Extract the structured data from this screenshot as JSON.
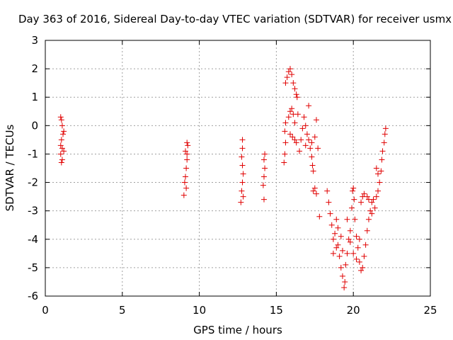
{
  "chart_data": {
    "type": "scatter",
    "title": "Day 363 of 2016, Sidereal Day-to-day VTEC variation (SDTVAR) for receiver usmx",
    "xlabel": "GPS time / hours",
    "ylabel": "SDTVAR / TECUs",
    "xlim": [
      0,
      25
    ],
    "ylim": [
      -6,
      3
    ],
    "x_ticks": [
      "0",
      "5",
      "10",
      "15",
      "20",
      "25"
    ],
    "y_ticks": [
      "-6",
      "-5",
      "-4",
      "-3",
      "-2",
      "-1",
      "0",
      "1",
      "2",
      "3"
    ],
    "x_tick_values": [
      0,
      5,
      10,
      15,
      20,
      25
    ],
    "y_tick_values": [
      -6,
      -5,
      -4,
      -3,
      -2,
      -1,
      0,
      1,
      2,
      3
    ],
    "grid": true,
    "marker": "+",
    "color": "#e00000",
    "series": [
      {
        "name": "usmx",
        "points": [
          [
            1.0,
            0.3
          ],
          [
            1.05,
            0.2
          ],
          [
            1.1,
            0.0
          ],
          [
            1.2,
            -0.2
          ],
          [
            1.15,
            -0.3
          ],
          [
            1.05,
            -0.5
          ],
          [
            1.0,
            -0.7
          ],
          [
            1.1,
            -0.8
          ],
          [
            1.0,
            -1.0
          ],
          [
            1.2,
            -0.9
          ],
          [
            1.1,
            -1.2
          ],
          [
            1.05,
            -1.3
          ],
          [
            9.0,
            -2.45
          ],
          [
            9.05,
            -2.0
          ],
          [
            9.1,
            -1.8
          ],
          [
            9.15,
            -1.5
          ],
          [
            9.2,
            -1.2
          ],
          [
            9.1,
            -0.9
          ],
          [
            9.2,
            -0.6
          ],
          [
            9.25,
            -0.7
          ],
          [
            9.15,
            -2.2
          ],
          [
            9.2,
            -1.0
          ],
          [
            12.7,
            -2.7
          ],
          [
            12.75,
            -2.3
          ],
          [
            12.8,
            -2.0
          ],
          [
            12.85,
            -1.7
          ],
          [
            12.8,
            -1.4
          ],
          [
            12.75,
            -1.1
          ],
          [
            12.8,
            -0.8
          ],
          [
            12.8,
            -0.5
          ],
          [
            12.85,
            -2.5
          ],
          [
            14.2,
            -2.6
          ],
          [
            14.15,
            -2.1
          ],
          [
            14.2,
            -1.8
          ],
          [
            14.25,
            -1.5
          ],
          [
            14.2,
            -1.2
          ],
          [
            14.25,
            -1.0
          ],
          [
            15.5,
            -1.3
          ],
          [
            15.55,
            -1.0
          ],
          [
            15.6,
            -0.6
          ],
          [
            15.55,
            -0.2
          ],
          [
            15.6,
            0.1
          ],
          [
            15.6,
            1.5
          ],
          [
            15.7,
            1.7
          ],
          [
            15.8,
            1.9
          ],
          [
            15.9,
            2.0
          ],
          [
            16.0,
            1.8
          ],
          [
            16.1,
            1.5
          ],
          [
            16.2,
            1.3
          ],
          [
            16.3,
            1.1
          ],
          [
            16.35,
            1.0
          ],
          [
            15.8,
            0.3
          ],
          [
            15.9,
            0.5
          ],
          [
            16.0,
            0.6
          ],
          [
            16.1,
            0.4
          ],
          [
            16.2,
            0.1
          ],
          [
            15.9,
            -0.3
          ],
          [
            16.05,
            -0.4
          ],
          [
            16.2,
            -0.5
          ],
          [
            16.3,
            -0.6
          ],
          [
            16.4,
            0.4
          ],
          [
            16.5,
            -0.9
          ],
          [
            16.6,
            -0.5
          ],
          [
            16.7,
            -0.1
          ],
          [
            16.8,
            0.3
          ],
          [
            16.9,
            0.0
          ],
          [
            17.0,
            -0.3
          ],
          [
            16.9,
            -0.7
          ],
          [
            17.1,
            -0.5
          ],
          [
            17.2,
            -0.8
          ],
          [
            17.3,
            -1.1
          ],
          [
            17.35,
            -1.4
          ],
          [
            17.4,
            -1.6
          ],
          [
            17.3,
            -0.6
          ],
          [
            17.5,
            -0.4
          ],
          [
            17.6,
            0.2
          ],
          [
            17.7,
            -0.8
          ],
          [
            17.8,
            -3.2
          ],
          [
            17.4,
            -2.3
          ],
          [
            17.5,
            -2.2
          ],
          [
            17.1,
            0.7
          ],
          [
            17.6,
            -2.4
          ],
          [
            18.3,
            -2.3
          ],
          [
            18.4,
            -2.7
          ],
          [
            18.5,
            -3.1
          ],
          [
            18.6,
            -3.5
          ],
          [
            18.7,
            -4.0
          ],
          [
            18.8,
            -3.8
          ],
          [
            18.9,
            -4.3
          ],
          [
            19.0,
            -4.2
          ],
          [
            19.1,
            -4.6
          ],
          [
            19.2,
            -5.0
          ],
          [
            19.3,
            -5.3
          ],
          [
            19.4,
            -5.7
          ],
          [
            19.45,
            -5.5
          ],
          [
            19.5,
            -4.9
          ],
          [
            19.6,
            -4.5
          ],
          [
            19.7,
            -4.0
          ],
          [
            19.8,
            -3.7
          ],
          [
            19.9,
            -2.9
          ],
          [
            19.95,
            -2.3
          ],
          [
            20.0,
            -2.2
          ],
          [
            20.05,
            -2.6
          ],
          [
            20.1,
            -3.3
          ],
          [
            20.2,
            -3.9
          ],
          [
            20.3,
            -4.3
          ],
          [
            20.4,
            -4.8
          ],
          [
            20.5,
            -5.1
          ],
          [
            20.6,
            -5.0
          ],
          [
            20.7,
            -4.6
          ],
          [
            20.8,
            -4.2
          ],
          [
            20.9,
            -3.7
          ],
          [
            21.0,
            -3.3
          ],
          [
            21.1,
            -3.0
          ],
          [
            20.5,
            -2.7
          ],
          [
            20.6,
            -2.5
          ],
          [
            20.7,
            -2.4
          ],
          [
            20.9,
            -2.5
          ],
          [
            21.0,
            -2.6
          ],
          [
            21.2,
            -2.7
          ],
          [
            21.3,
            -2.6
          ],
          [
            21.5,
            -2.5
          ],
          [
            21.6,
            -2.3
          ],
          [
            21.7,
            -2.0
          ],
          [
            21.8,
            -1.6
          ],
          [
            21.85,
            -1.2
          ],
          [
            21.9,
            -0.9
          ],
          [
            22.0,
            -0.6
          ],
          [
            22.05,
            -0.3
          ],
          [
            22.1,
            -0.1
          ],
          [
            21.5,
            -1.5
          ],
          [
            21.6,
            -1.7
          ],
          [
            21.4,
            -2.9
          ],
          [
            21.2,
            -3.1
          ],
          [
            18.9,
            -3.3
          ],
          [
            19.0,
            -3.6
          ],
          [
            19.2,
            -3.9
          ],
          [
            19.6,
            -3.3
          ],
          [
            19.8,
            -4.1
          ],
          [
            20.0,
            -4.5
          ],
          [
            20.2,
            -4.7
          ],
          [
            20.4,
            -4.0
          ],
          [
            18.7,
            -4.5
          ],
          [
            19.3,
            -4.4
          ]
        ]
      }
    ]
  }
}
